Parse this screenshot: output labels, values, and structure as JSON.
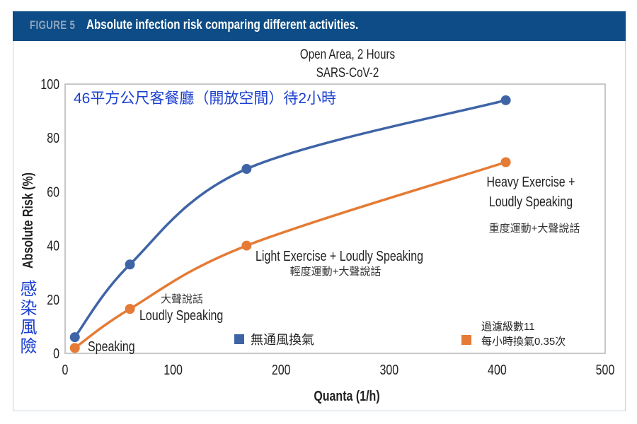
{
  "header": {
    "figure_label": "FIGURE 5",
    "title": "Absolute infection risk comparing different activities."
  },
  "colors": {
    "header_bg": "#0d4c86",
    "series_blue": "#3f64a6",
    "series_orange": "#e57b35",
    "annotation_blue": "#1a3fd0"
  },
  "chart_data": {
    "type": "line",
    "title": [
      "Open Area, 2 Hours",
      "SARS-CoV-2"
    ],
    "subtitle": "46平方公尺客餐廳（開放空間）待2小時",
    "xlabel": "Quanta (1/h)",
    "ylabel": "Absolute Risk (%)",
    "ylabel_zh": "感染風險",
    "xlim": [
      0,
      500
    ],
    "ylim": [
      0,
      100
    ],
    "xticks": [
      0,
      100,
      200,
      300,
      400,
      500
    ],
    "yticks": [
      0,
      20,
      40,
      60,
      80,
      100
    ],
    "grid": false,
    "x": [
      9,
      60,
      168,
      408
    ],
    "series": [
      {
        "name": "無通風換氣",
        "color": "#3f64a6",
        "values": [
          6,
          33,
          68.5,
          94
        ]
      },
      {
        "name": "過濾級數11 每小時換氣0.35次",
        "name_lines": [
          "過濾級數11",
          "每小時換氣0.35次"
        ],
        "color": "#e57b35",
        "values": [
          2,
          16.5,
          40,
          71
        ]
      }
    ],
    "legend": "bottom-inside",
    "annotations": [
      {
        "lines": [
          "Speaking"
        ]
      },
      {
        "lines": [
          "大聲說話",
          "Loudly Speaking"
        ]
      },
      {
        "lines": [
          "Light Exercise + Loudly Speaking",
          "輕度運動+大聲說話"
        ]
      },
      {
        "lines": [
          "Heavy Exercise +",
          "Loudly Speaking",
          "重度運動+大聲說話"
        ]
      }
    ]
  }
}
